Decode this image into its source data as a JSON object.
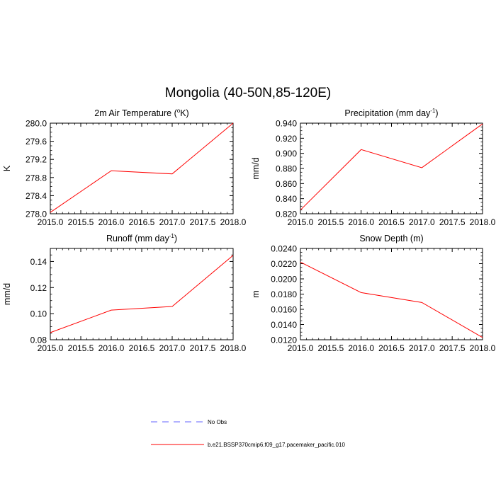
{
  "title": "Mongolia (40-50N,85-120E)",
  "legend": [
    {
      "label": "No Obs",
      "color": "#6666ff",
      "dashed": true
    },
    {
      "label": "b.e21.BSSP370cmip6.f09_g17.pacemaker_pacific.010",
      "color": "#ff0000",
      "dashed": false
    }
  ],
  "chart_data": [
    {
      "type": "line",
      "title": "2m Air Temperature",
      "title_unit_base": "K",
      "title_unit_sup": "o",
      "ylabel": "K",
      "x": [
        2015.0,
        2016.0,
        2017.0,
        2018.0
      ],
      "xlim": [
        2015.0,
        2018.0
      ],
      "xticks": [
        "2015.0",
        "2015.5",
        "2016.0",
        "2016.5",
        "2017.0",
        "2017.5",
        "2018.0"
      ],
      "ylim": [
        278.0,
        280.0
      ],
      "yticks": [
        "278.0",
        "278.4",
        "278.8",
        "279.2",
        "279.6",
        "280.0"
      ],
      "series": [
        {
          "name": "b.e21.BSSP370cmip6.f09_g17.pacemaker_pacific.010",
          "color": "#ff0000",
          "values": [
            278.03,
            278.95,
            278.88,
            280.0
          ]
        }
      ]
    },
    {
      "type": "line",
      "title": "Precipitation",
      "title_unit_base": "mm day",
      "title_unit_sup": "-1",
      "ylabel": "mm/d",
      "x": [
        2015.0,
        2016.0,
        2017.0,
        2018.0
      ],
      "xlim": [
        2015.0,
        2018.0
      ],
      "xticks": [
        "2015.0",
        "2015.5",
        "2016.0",
        "2016.5",
        "2017.0",
        "2017.5",
        "2018.0"
      ],
      "ylim": [
        0.82,
        0.94
      ],
      "yticks": [
        "0.820",
        "0.840",
        "0.860",
        "0.880",
        "0.900",
        "0.920",
        "0.940"
      ],
      "series": [
        {
          "name": "b.e21.BSSP370cmip6.f09_g17.pacemaker_pacific.010",
          "color": "#ff0000",
          "values": [
            0.825,
            0.905,
            0.881,
            0.939
          ]
        }
      ]
    },
    {
      "type": "line",
      "title": "Runoff",
      "title_unit_base": "mm day",
      "title_unit_sup": "-1",
      "ylabel": "mm/d",
      "x": [
        2015.0,
        2016.0,
        2017.0,
        2018.0
      ],
      "xlim": [
        2015.0,
        2018.0
      ],
      "xticks": [
        "2015.0",
        "2015.5",
        "2016.0",
        "2016.5",
        "2017.0",
        "2017.5",
        "2018.0"
      ],
      "ylim": [
        0.08,
        0.15
      ],
      "yticks": [
        "0.08",
        "0.10",
        "0.12",
        "0.14"
      ],
      "series": [
        {
          "name": "b.e21.BSSP370cmip6.f09_g17.pacemaker_pacific.010",
          "color": "#ff0000",
          "values": [
            0.0855,
            0.1027,
            0.1055,
            0.1447
          ]
        }
      ]
    },
    {
      "type": "line",
      "title": "Snow Depth",
      "title_unit_base": "m",
      "title_unit_sup": "",
      "ylabel": "m",
      "x": [
        2015.0,
        2016.0,
        2017.0,
        2018.0
      ],
      "xlim": [
        2015.0,
        2018.0
      ],
      "xticks": [
        "2015.0",
        "2015.5",
        "2016.0",
        "2016.5",
        "2017.0",
        "2017.5",
        "2018.0"
      ],
      "ylim": [
        0.012,
        0.024
      ],
      "yticks": [
        "0.0120",
        "0.0140",
        "0.0160",
        "0.0180",
        "0.0200",
        "0.0220",
        "0.0240"
      ],
      "series": [
        {
          "name": "b.e21.BSSP370cmip6.f09_g17.pacemaker_pacific.010",
          "color": "#ff0000",
          "values": [
            0.0222,
            0.0182,
            0.0169,
            0.0123
          ]
        }
      ]
    }
  ]
}
